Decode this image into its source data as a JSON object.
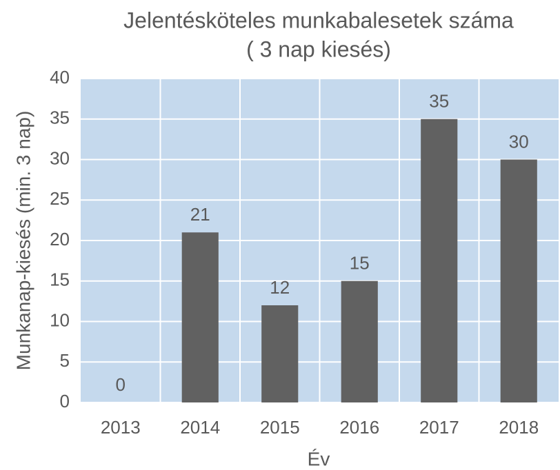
{
  "chart_data": {
    "type": "bar",
    "title": "Jelentésköteles munkabalesetek száma",
    "subtitle": "( 3 nap kiesés)",
    "x_label": "Év",
    "y_label": "Munkanap-kiesés (min. 3 nap)",
    "categories": [
      "2013",
      "2014",
      "2015",
      "2016",
      "2017",
      "2018"
    ],
    "values": [
      0,
      21,
      12,
      15,
      35,
      30
    ],
    "color": "#616161",
    "ylim": [
      0,
      40
    ],
    "yticks": [
      0,
      5,
      10,
      15,
      20,
      25,
      30,
      35,
      40
    ],
    "grid": true
  }
}
